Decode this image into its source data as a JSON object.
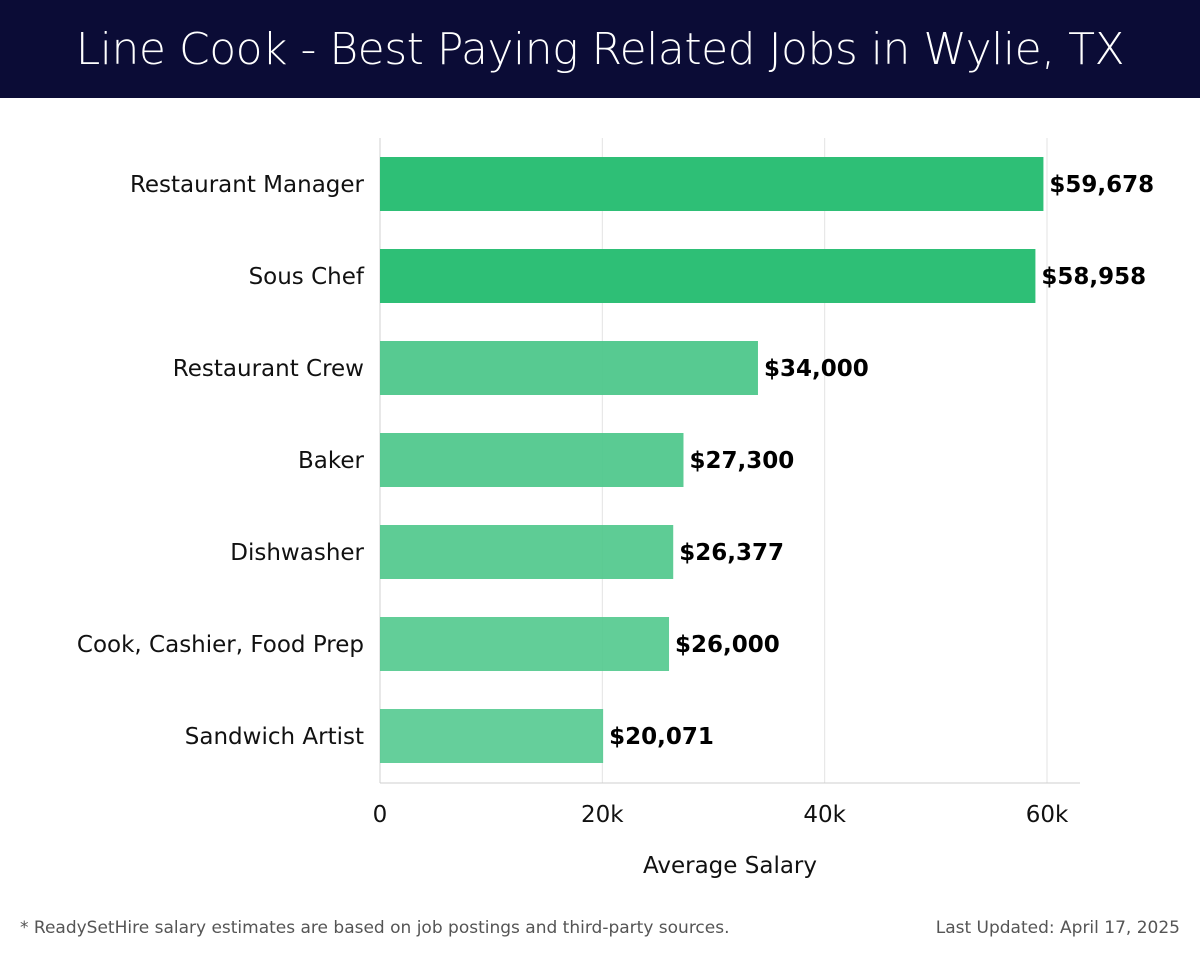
{
  "header": {
    "title": "Line Cook - Best Paying Related Jobs in Wylie, TX"
  },
  "chart_data": {
    "type": "bar",
    "orientation": "horizontal",
    "categories": [
      "Restaurant Manager",
      "Sous Chef",
      "Restaurant Crew",
      "Baker",
      "Dishwasher",
      "Cook, Cashier, Food Prep",
      "Sandwich Artist"
    ],
    "values": [
      59678,
      58958,
      34000,
      27300,
      26377,
      26000,
      20071
    ],
    "value_labels": [
      "$59,678",
      "$58,958",
      "$34,000",
      "$27,300",
      "$26,377",
      "$26,000",
      "$20,071"
    ],
    "xlabel": "Average Salary",
    "ylabel": "",
    "xlim": [
      0,
      63000
    ],
    "xticks": [
      0,
      20000,
      40000,
      60000
    ],
    "xtick_labels": [
      "0",
      "20k",
      "40k",
      "60k"
    ],
    "grid": true,
    "colors": {
      "highlight": "#2ebf76",
      "default": "#4cc78a",
      "highlight_count": 2
    }
  },
  "footer": {
    "note": "* ReadySetHire salary estimates are based on job postings and third-party sources.",
    "updated": "Last Updated: April 17, 2025"
  }
}
